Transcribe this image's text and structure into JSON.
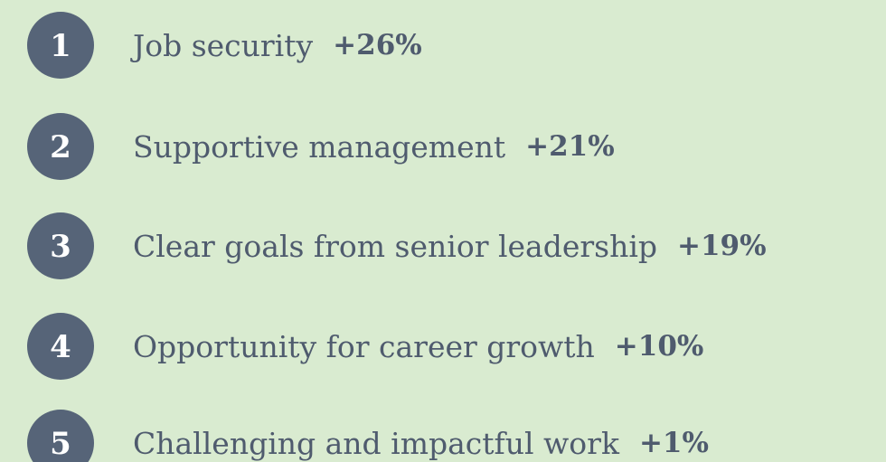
{
  "items": [
    {
      "rank": "1",
      "label": "Job security",
      "change": "+26%"
    },
    {
      "rank": "2",
      "label": "Supportive management",
      "change": "+21%"
    },
    {
      "rank": "3",
      "label": "Clear goals from senior leadership",
      "change": "+19%"
    },
    {
      "rank": "4",
      "label": "Opportunity for career growth",
      "change": "+10%"
    },
    {
      "rank": "5",
      "label": "Challenging and impactful work",
      "change": "+1%"
    }
  ]
}
